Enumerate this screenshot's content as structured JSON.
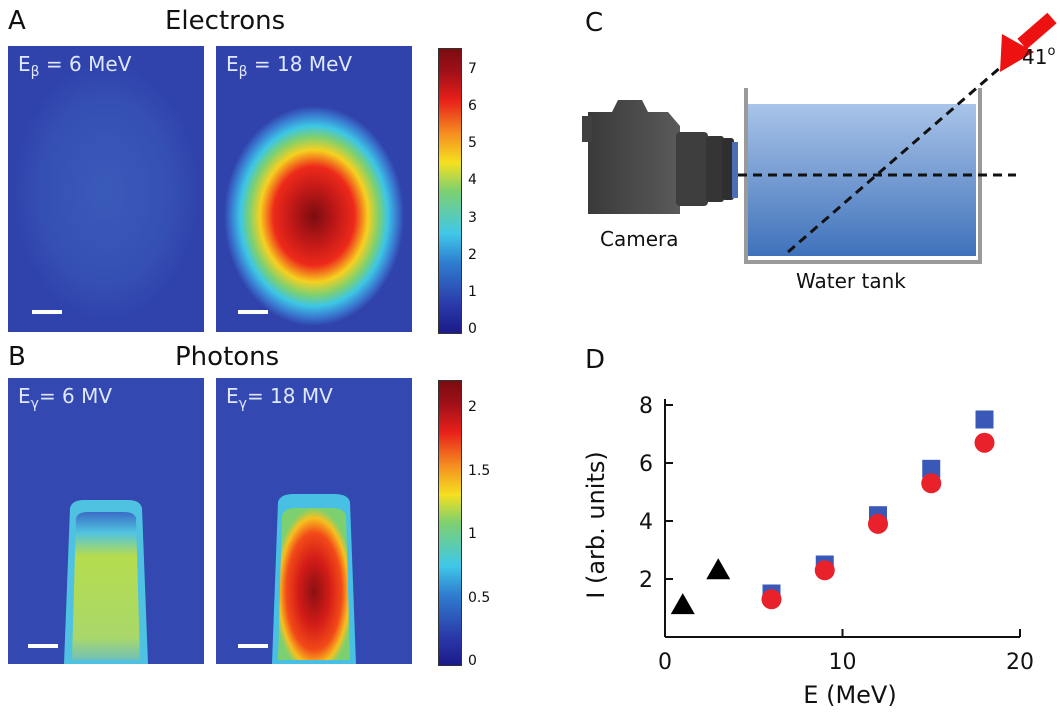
{
  "panels": {
    "A": {
      "letter": "A",
      "title": "Electrons",
      "left_label": {
        "prefix": "E",
        "sub": "β",
        "suffix": " = 6 MeV"
      },
      "right_label": {
        "prefix": "E",
        "sub": "β",
        "suffix": " = 18 MeV"
      },
      "colorbar_ticks": [
        "7",
        "6",
        "5",
        "4",
        "3",
        "2",
        "1",
        "0"
      ]
    },
    "B": {
      "letter": "B",
      "title": "Photons",
      "left_label": {
        "prefix": "E",
        "sub": "γ",
        "suffix": "= 6 MV"
      },
      "right_label": {
        "prefix": "E",
        "sub": "γ",
        "suffix": "= 18 MV"
      },
      "colorbar_ticks": [
        "2",
        "1.5",
        "1",
        "0.5",
        "0"
      ]
    },
    "C": {
      "letter": "C",
      "camera_label": "Camera",
      "tank_label": "Water tank",
      "angle_label": "41",
      "angle_unit": "o"
    },
    "D": {
      "letter": "D"
    }
  },
  "colors": {
    "cmap_low": "#2a3aa8",
    "cmap_high": "#7a0c10",
    "square_marker": "#3a58b8",
    "circle_marker": "#e8212a",
    "triangle_marker": "#000000",
    "arrow": "#ee1111"
  },
  "chart_data": {
    "type": "scatter",
    "xlabel": "E (MeV)",
    "ylabel": "I (arb. units)",
    "xlim": [
      0,
      20
    ],
    "ylim": [
      0,
      8
    ],
    "xticks": [
      "0",
      "10",
      "20"
    ],
    "yticks": [
      "2",
      "4",
      "6",
      "8"
    ],
    "series": [
      {
        "marker": "square",
        "color": "#3a58b8",
        "x": [
          6,
          9,
          12,
          15,
          18
        ],
        "y": [
          1.5,
          2.5,
          4.2,
          5.8,
          7.5
        ]
      },
      {
        "marker": "circle",
        "color": "#e8212a",
        "x": [
          6,
          9,
          12,
          15,
          18
        ],
        "y": [
          1.3,
          2.3,
          3.9,
          5.3,
          6.7
        ]
      },
      {
        "marker": "triangle",
        "color": "#000000",
        "x": [
          1,
          3
        ],
        "y": [
          1.1,
          2.3
        ]
      }
    ]
  }
}
